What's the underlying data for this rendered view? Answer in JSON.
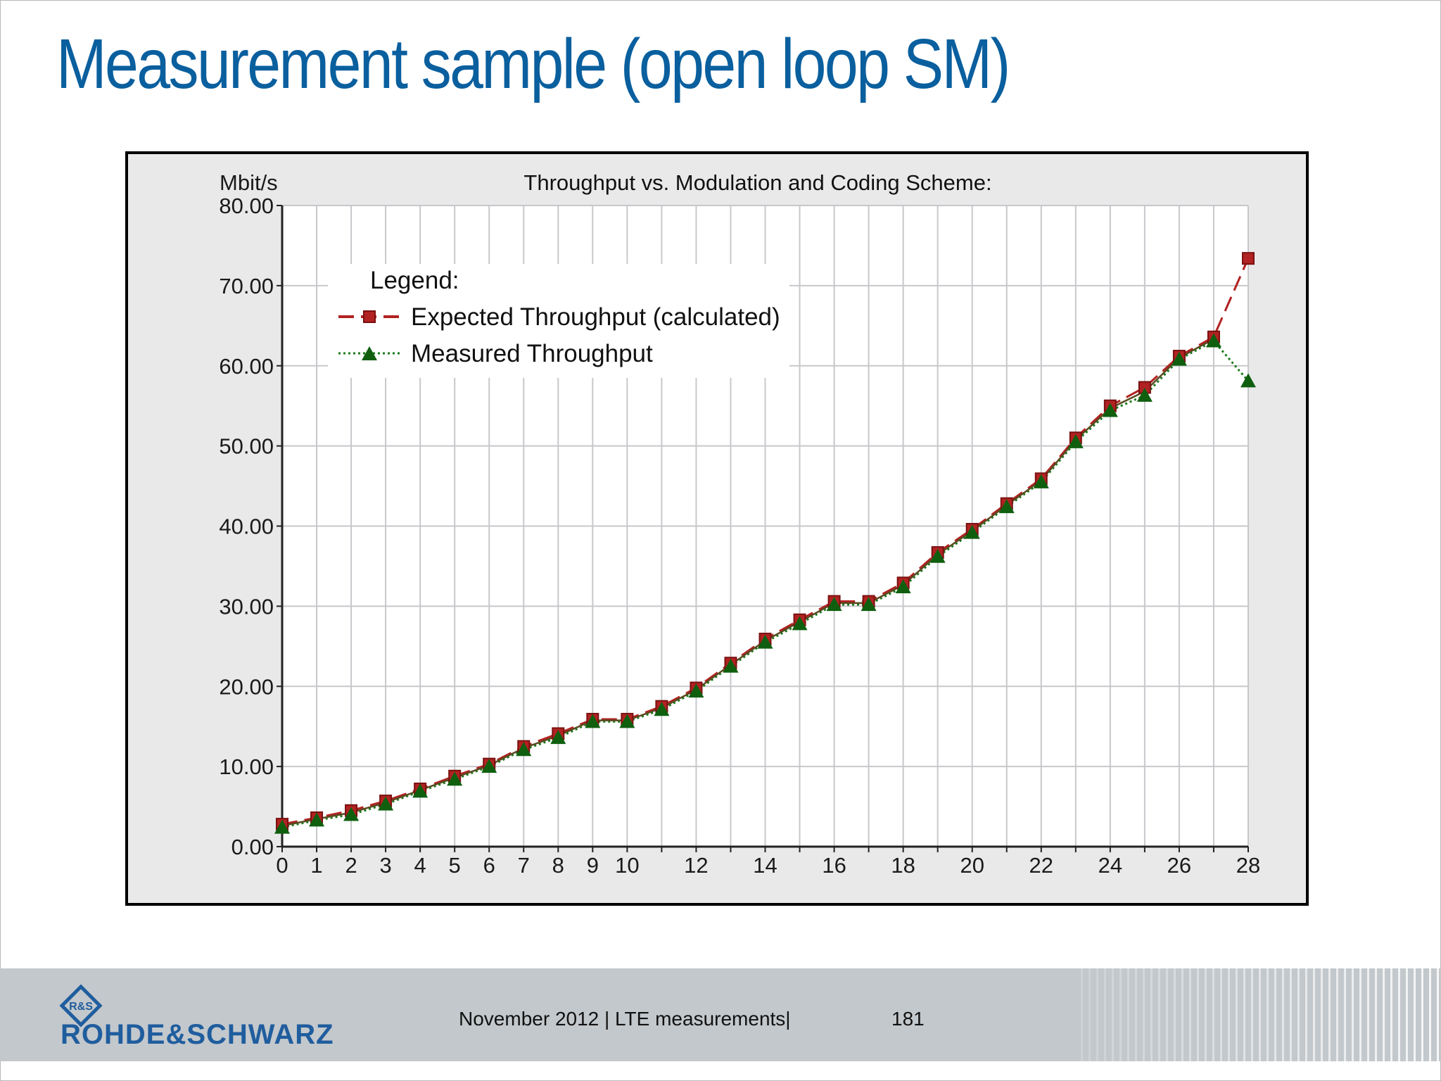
{
  "slide": {
    "title": "Measurement sample (open loop SM)"
  },
  "chart_data": {
    "type": "line",
    "title": "Throughput vs. Modulation and Coding Scheme:",
    "ylabel": "Mbit/s",
    "xlabel": "",
    "xlim": [
      0,
      28
    ],
    "ylim": [
      0,
      80
    ],
    "x_ticks": [
      0,
      1,
      2,
      3,
      4,
      5,
      6,
      7,
      8,
      9,
      10,
      12,
      14,
      16,
      18,
      20,
      22,
      24,
      26,
      28
    ],
    "y_ticks": [
      "0.00",
      "10.00",
      "20.00",
      "30.00",
      "40.00",
      "50.00",
      "60.00",
      "70.00",
      "80.00"
    ],
    "grid": true,
    "legend": {
      "title": "Legend:",
      "placement": "top-left"
    },
    "x": [
      0,
      1,
      2,
      3,
      4,
      5,
      6,
      7,
      8,
      9,
      10,
      11,
      12,
      13,
      14,
      15,
      16,
      17,
      18,
      19,
      20,
      21,
      22,
      23,
      24,
      25,
      26,
      27,
      28
    ],
    "series": [
      {
        "name": "Expected Throughput (calculated)",
        "color": "#b22222",
        "style": "dashed",
        "marker": "square",
        "values": [
          2.8,
          3.6,
          4.5,
          5.7,
          7.2,
          8.8,
          10.3,
          12.5,
          14.1,
          15.9,
          15.9,
          17.5,
          19.8,
          22.9,
          25.9,
          28.3,
          30.6,
          30.6,
          32.9,
          36.7,
          39.6,
          42.8,
          45.9,
          51.0,
          55.0,
          57.3,
          61.2,
          63.6,
          73.4
        ]
      },
      {
        "name": "Measured Throughput",
        "color": "#1a7a1a",
        "style": "dotted",
        "marker": "triangle",
        "values": [
          2.4,
          3.3,
          4.0,
          5.3,
          6.9,
          8.4,
          10.0,
          12.1,
          13.6,
          15.6,
          15.6,
          17.1,
          19.4,
          22.5,
          25.5,
          27.8,
          30.2,
          30.2,
          32.4,
          36.2,
          39.2,
          42.4,
          45.5,
          50.5,
          54.4,
          56.3,
          60.8,
          63.1,
          58.1
        ]
      }
    ]
  },
  "footer": {
    "logo_text": "ROHDE&SCHWARZ",
    "logo_mark_text": "RS",
    "date_and_topic": "November 2012 |  LTE measurements|",
    "page_number": "181"
  }
}
